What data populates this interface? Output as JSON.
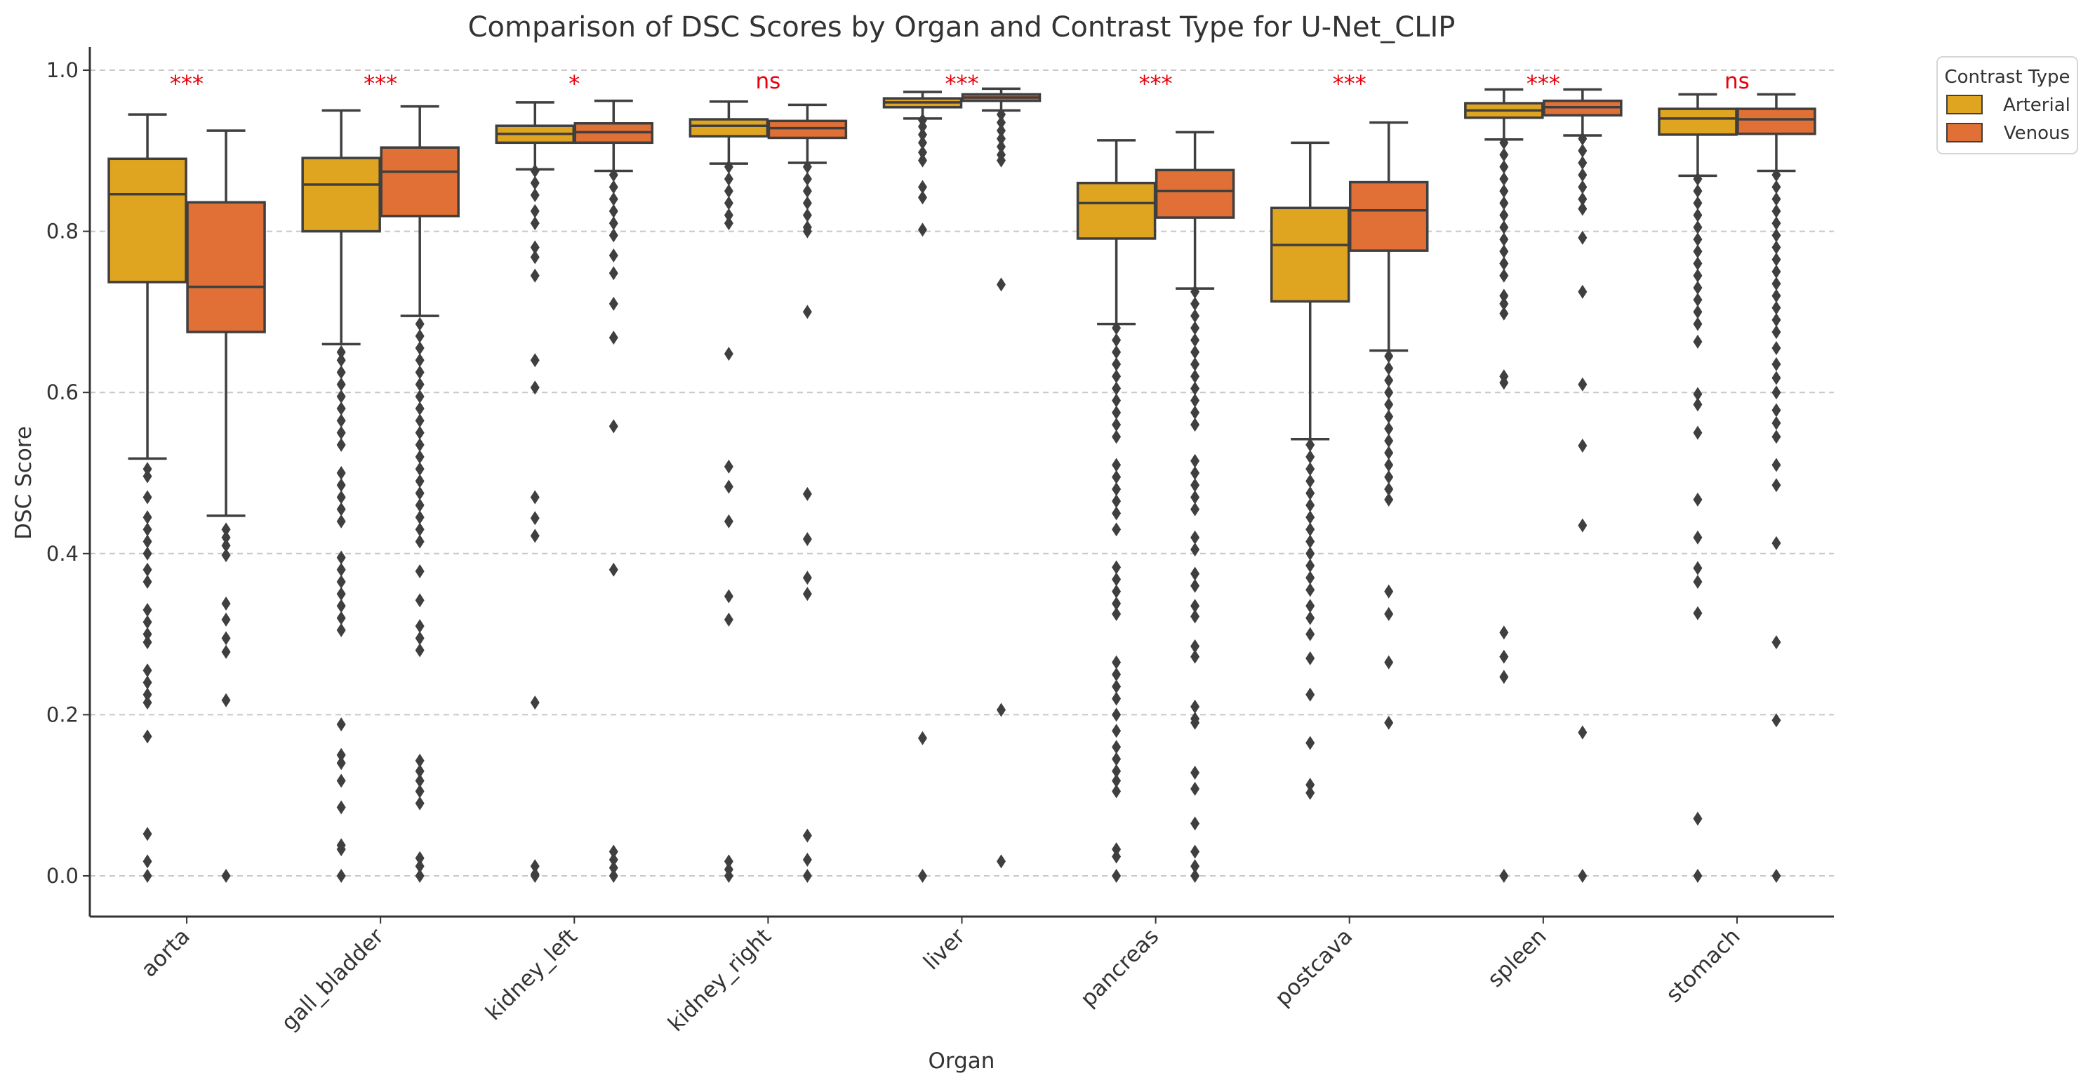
{
  "chart_data": {
    "type": "box",
    "title": "Comparison of DSC Scores by Organ and Contrast Type for U-Net_CLIP",
    "xlabel": "Organ",
    "ylabel": "DSC Score",
    "ylim": [
      -0.05,
      1.03
    ],
    "yticks": [
      0.0,
      0.2,
      0.4,
      0.6,
      0.8,
      1.0
    ],
    "ytick_labels": [
      "0.0",
      "0.2",
      "0.4",
      "0.6",
      "0.8",
      "1.0"
    ],
    "grid": "horizontal dashed",
    "legend": {
      "title": "Contrast Type",
      "placement": "upper right, outside plot"
    },
    "categories": [
      "aorta",
      "gall_bladder",
      "kidney_left",
      "kidney_right",
      "liver",
      "pancreas",
      "postcava",
      "spleen",
      "stomach"
    ],
    "significance": [
      "***",
      "***",
      "*",
      "ns",
      "***",
      "***",
      "***",
      "***",
      "ns"
    ],
    "significance_color": "#e8000b",
    "series": [
      {
        "name": "Arterial",
        "color": "#e0a520",
        "boxes": [
          {
            "whisker_low": 0.518,
            "q1": 0.737,
            "median": 0.846,
            "q3": 0.89,
            "whisker_high": 0.945,
            "outliers": [
              0.505,
              0.496,
              0.47,
              0.445,
              0.43,
              0.415,
              0.4,
              0.38,
              0.365,
              0.33,
              0.315,
              0.3,
              0.29,
              0.255,
              0.24,
              0.225,
              0.215,
              0.173,
              0.052,
              0.018,
              0.0
            ]
          },
          {
            "whisker_low": 0.66,
            "q1": 0.8,
            "median": 0.858,
            "q3": 0.891,
            "whisker_high": 0.95,
            "outliers": [
              0.65,
              0.64,
              0.625,
              0.61,
              0.595,
              0.58,
              0.565,
              0.55,
              0.535,
              0.5,
              0.485,
              0.47,
              0.455,
              0.44,
              0.395,
              0.38,
              0.365,
              0.35,
              0.335,
              0.32,
              0.305,
              0.188,
              0.15,
              0.14,
              0.118,
              0.085,
              0.038,
              0.033,
              0.0
            ]
          },
          {
            "whisker_low": 0.877,
            "q1": 0.91,
            "median": 0.921,
            "q3": 0.931,
            "whisker_high": 0.96,
            "outliers": [
              0.875,
              0.86,
              0.845,
              0.825,
              0.81,
              0.78,
              0.768,
              0.745,
              0.64,
              0.606,
              0.47,
              0.444,
              0.422,
              0.215,
              0.012,
              0.002,
              0.0
            ]
          },
          {
            "whisker_low": 0.884,
            "q1": 0.918,
            "median": 0.931,
            "q3": 0.939,
            "whisker_high": 0.961,
            "outliers": [
              0.88,
              0.865,
              0.85,
              0.835,
              0.82,
              0.81,
              0.648,
              0.508,
              0.483,
              0.44,
              0.347,
              0.318,
              0.018,
              0.008,
              0.0
            ]
          },
          {
            "whisker_low": 0.94,
            "q1": 0.954,
            "median": 0.96,
            "q3": 0.965,
            "whisker_high": 0.973,
            "outliers": [
              0.938,
              0.93,
              0.92,
              0.91,
              0.898,
              0.888,
              0.855,
              0.842,
              0.802,
              0.171,
              0.0
            ]
          },
          {
            "whisker_low": 0.685,
            "q1": 0.791,
            "median": 0.835,
            "q3": 0.86,
            "whisker_high": 0.913,
            "outliers": [
              0.68,
              0.665,
              0.65,
              0.635,
              0.62,
              0.605,
              0.59,
              0.575,
              0.56,
              0.545,
              0.51,
              0.495,
              0.48,
              0.465,
              0.45,
              0.43,
              0.383,
              0.368,
              0.353,
              0.338,
              0.325,
              0.265,
              0.25,
              0.235,
              0.22,
              0.2,
              0.18,
              0.16,
              0.145,
              0.13,
              0.118,
              0.105,
              0.033,
              0.024,
              0.0
            ]
          },
          {
            "whisker_low": 0.542,
            "q1": 0.713,
            "median": 0.783,
            "q3": 0.829,
            "whisker_high": 0.91,
            "outliers": [
              0.535,
              0.52,
              0.505,
              0.49,
              0.475,
              0.46,
              0.445,
              0.43,
              0.415,
              0.4,
              0.385,
              0.37,
              0.355,
              0.335,
              0.32,
              0.3,
              0.27,
              0.225,
              0.165,
              0.113,
              0.103
            ]
          },
          {
            "whisker_low": 0.914,
            "q1": 0.941,
            "median": 0.95,
            "q3": 0.959,
            "whisker_high": 0.976,
            "outliers": [
              0.91,
              0.895,
              0.88,
              0.865,
              0.85,
              0.835,
              0.82,
              0.805,
              0.79,
              0.775,
              0.76,
              0.745,
              0.72,
              0.71,
              0.698,
              0.62,
              0.612,
              0.302,
              0.272,
              0.247,
              0.0
            ]
          },
          {
            "whisker_low": 0.869,
            "q1": 0.92,
            "median": 0.94,
            "q3": 0.952,
            "whisker_high": 0.97,
            "outliers": [
              0.865,
              0.85,
              0.835,
              0.82,
              0.805,
              0.79,
              0.775,
              0.76,
              0.745,
              0.73,
              0.715,
              0.7,
              0.685,
              0.663,
              0.598,
              0.585,
              0.55,
              0.467,
              0.42,
              0.382,
              0.365,
              0.326,
              0.071,
              0.0
            ]
          }
        ]
      },
      {
        "name": "Venous",
        "color": "#e07035",
        "boxes": [
          {
            "whisker_low": 0.447,
            "q1": 0.675,
            "median": 0.731,
            "q3": 0.836,
            "whisker_high": 0.925,
            "outliers": [
              0.43,
              0.42,
              0.41,
              0.398,
              0.338,
              0.318,
              0.295,
              0.278,
              0.218,
              0.0
            ]
          },
          {
            "whisker_low": 0.695,
            "q1": 0.819,
            "median": 0.874,
            "q3": 0.904,
            "whisker_high": 0.955,
            "outliers": [
              0.685,
              0.67,
              0.655,
              0.64,
              0.625,
              0.61,
              0.595,
              0.58,
              0.565,
              0.55,
              0.535,
              0.52,
              0.505,
              0.49,
              0.475,
              0.46,
              0.445,
              0.43,
              0.415,
              0.378,
              0.342,
              0.31,
              0.295,
              0.28,
              0.143,
              0.13,
              0.118,
              0.105,
              0.09,
              0.022,
              0.012,
              0.0
            ]
          },
          {
            "whisker_low": 0.875,
            "q1": 0.91,
            "median": 0.923,
            "q3": 0.934,
            "whisker_high": 0.962,
            "outliers": [
              0.87,
              0.855,
              0.84,
              0.825,
              0.81,
              0.795,
              0.77,
              0.748,
              0.71,
              0.668,
              0.558,
              0.38,
              0.03,
              0.02,
              0.01,
              0.0
            ]
          },
          {
            "whisker_low": 0.885,
            "q1": 0.916,
            "median": 0.928,
            "q3": 0.937,
            "whisker_high": 0.957,
            "outliers": [
              0.88,
              0.865,
              0.85,
              0.835,
              0.82,
              0.805,
              0.8,
              0.7,
              0.474,
              0.418,
              0.37,
              0.35,
              0.05,
              0.02,
              0.0
            ]
          },
          {
            "whisker_low": 0.95,
            "q1": 0.962,
            "median": 0.966,
            "q3": 0.97,
            "whisker_high": 0.977,
            "outliers": [
              0.945,
              0.935,
              0.925,
              0.915,
              0.905,
              0.895,
              0.888,
              0.734,
              0.206,
              0.018
            ]
          },
          {
            "whisker_low": 0.729,
            "q1": 0.817,
            "median": 0.85,
            "q3": 0.876,
            "whisker_high": 0.923,
            "outliers": [
              0.725,
              0.71,
              0.695,
              0.68,
              0.665,
              0.65,
              0.635,
              0.62,
              0.605,
              0.59,
              0.575,
              0.56,
              0.515,
              0.5,
              0.485,
              0.47,
              0.455,
              0.42,
              0.405,
              0.375,
              0.36,
              0.335,
              0.322,
              0.285,
              0.272,
              0.21,
              0.195,
              0.19,
              0.128,
              0.108,
              0.065,
              0.03,
              0.012,
              0.0
            ]
          },
          {
            "whisker_low": 0.652,
            "q1": 0.776,
            "median": 0.826,
            "q3": 0.861,
            "whisker_high": 0.935,
            "outliers": [
              0.645,
              0.63,
              0.615,
              0.6,
              0.585,
              0.57,
              0.555,
              0.54,
              0.525,
              0.51,
              0.495,
              0.48,
              0.467,
              0.353,
              0.325,
              0.265,
              0.19
            ]
          },
          {
            "whisker_low": 0.919,
            "q1": 0.944,
            "median": 0.954,
            "q3": 0.962,
            "whisker_high": 0.976,
            "outliers": [
              0.915,
              0.9,
              0.885,
              0.87,
              0.855,
              0.84,
              0.828,
              0.792,
              0.725,
              0.61,
              0.534,
              0.435,
              0.178,
              0.0
            ]
          },
          {
            "whisker_low": 0.875,
            "q1": 0.921,
            "median": 0.939,
            "q3": 0.952,
            "whisker_high": 0.97,
            "outliers": [
              0.87,
              0.855,
              0.84,
              0.825,
              0.81,
              0.795,
              0.78,
              0.765,
              0.75,
              0.735,
              0.72,
              0.705,
              0.69,
              0.675,
              0.655,
              0.635,
              0.618,
              0.6,
              0.578,
              0.562,
              0.545,
              0.51,
              0.485,
              0.413,
              0.29,
              0.193,
              0.0
            ]
          }
        ]
      }
    ]
  }
}
